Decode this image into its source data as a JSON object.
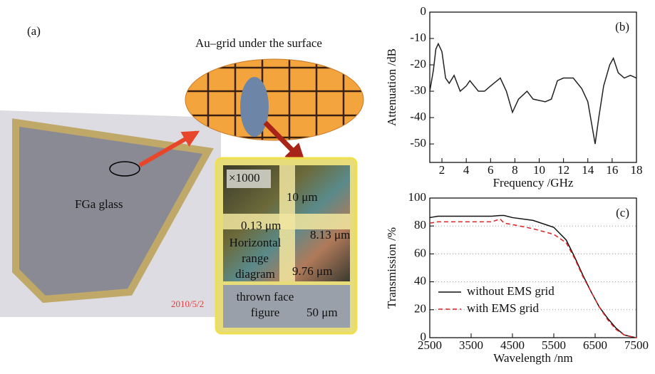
{
  "photo_panel": {
    "label": "(a)",
    "callout_title": "Au–grid under the surface",
    "glass_label": "FGa glass",
    "magnification": "×1000",
    "dim_top": "10 μm",
    "dim_left": "0.13 μm",
    "dim_right": "8.13 μm",
    "range_lines": [
      "Horizontal",
      "range",
      "diagram"
    ],
    "dim_bottom": "9.76 μm",
    "face_lines": [
      "thrown face",
      "figure"
    ],
    "scale_bar": "50 μm",
    "timestamp": "2010/5/2"
  },
  "chart_data": [
    {
      "type": "line",
      "label": "(b)",
      "x_label": "Frequency /GHz",
      "y_label": "Attenuation /dB",
      "x": [
        1,
        1.3,
        1.5,
        1.7,
        2,
        2.3,
        2.6,
        3,
        3.5,
        4,
        4.3,
        5,
        5.5,
        6,
        6.8,
        7.3,
        7.8,
        8.3,
        9,
        9.5,
        10.5,
        11,
        11.5,
        12,
        12.8,
        13.5,
        14,
        14.3,
        14.6,
        14.9,
        15.3,
        15.8,
        16.1,
        16.5,
        17,
        17.5,
        18
      ],
      "series": [
        {
          "color": "#222222",
          "values": [
            -30,
            -22,
            -14,
            -12,
            -15,
            -25,
            -27,
            -24,
            -30,
            -28,
            -26,
            -30,
            -30,
            -28,
            -25,
            -30,
            -38,
            -33,
            -30,
            -33,
            -34,
            -33,
            -26,
            -25,
            -25,
            -29,
            -34,
            -42,
            -50,
            -40,
            -28,
            -20,
            -17.5,
            -23,
            -25,
            -24,
            -25
          ]
        }
      ],
      "xlim": [
        1,
        18
      ],
      "xticks": [
        2,
        4,
        6,
        8,
        10,
        12,
        14,
        16,
        18
      ],
      "ylim": [
        -57,
        0
      ],
      "yticks": [
        0,
        -10,
        -20,
        -30,
        -40,
        -50
      ],
      "grid": false
    },
    {
      "type": "line",
      "label": "(c)",
      "x_label": "Wavelength /nm",
      "y_label": "Transmission /%",
      "x": [
        2500,
        2700,
        3000,
        3500,
        4000,
        4200,
        4300,
        4500,
        5000,
        5500,
        5800,
        6000,
        6200,
        6400,
        6600,
        6800,
        7000,
        7200,
        7400,
        7500
      ],
      "series": [
        {
          "name": "without EMS grid",
          "color": "#111111",
          "linestyle": "solid",
          "values": [
            86,
            87,
            87,
            87,
            87,
            87.5,
            87.5,
            86,
            84,
            79,
            70,
            58,
            45,
            33,
            22,
            14,
            7,
            2,
            0.5,
            0
          ]
        },
        {
          "name": "with EMS grid",
          "color": "#e02020",
          "linestyle": "dashed",
          "values": [
            82,
            83,
            83,
            83,
            83,
            85,
            82,
            81,
            78,
            74,
            68,
            57,
            44,
            33,
            22,
            13,
            6,
            2,
            0.5,
            0
          ]
        }
      ],
      "xlim": [
        2500,
        7500
      ],
      "xticks": [
        2500,
        3500,
        4500,
        5500,
        6500,
        7500
      ],
      "ylim": [
        0,
        100
      ],
      "yticks": [
        0,
        20,
        40,
        60,
        80,
        100
      ],
      "grid": true,
      "legend": "lower left"
    }
  ]
}
